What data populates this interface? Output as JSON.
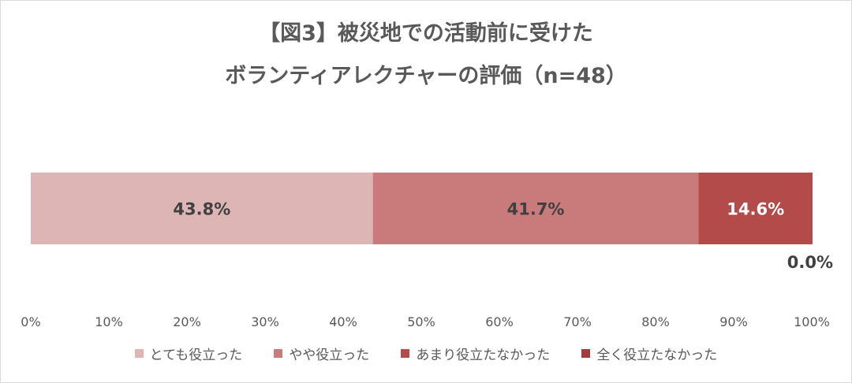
{
  "chart_data": {
    "type": "bar",
    "orientation": "horizontal-stacked-100",
    "title_lines": [
      "【図3】被災地での活動前に受けた",
      "ボランティアレクチャーの評価（n=48）"
    ],
    "categories": [
      ""
    ],
    "series": [
      {
        "name": "とても役立った",
        "values": [
          43.8
        ],
        "label": "43.8%",
        "color": "#deb5b5"
      },
      {
        "name": "やや役立った",
        "values": [
          41.7
        ],
        "label": "41.7%",
        "color": "#c97b7b"
      },
      {
        "name": "あまり役立たなかった",
        "values": [
          14.6
        ],
        "label": "14.6%",
        "color": "#b44b4b"
      },
      {
        "name": "全く役立たなかった",
        "values": [
          0.0
        ],
        "label": "0.0%",
        "color": "#a33c3c"
      }
    ],
    "xlim": [
      0,
      100
    ],
    "x_ticks": [
      "0%",
      "10%",
      "20%",
      "30%",
      "40%",
      "50%",
      "60%",
      "70%",
      "80%",
      "90%",
      "100%"
    ],
    "grid": false,
    "legend_position": "bottom"
  }
}
